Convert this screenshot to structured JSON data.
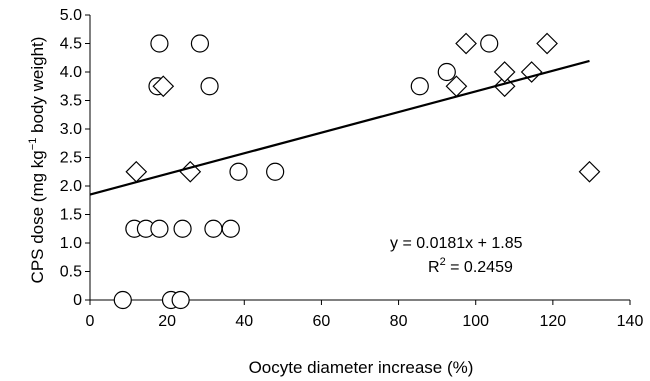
{
  "chart_data": {
    "type": "scatter",
    "xlabel": "Oocyte diameter increase (%)",
    "ylabel_main": "CPS dose (mg kg",
    "ylabel_sup": "−1",
    "ylabel_end": " body weight)",
    "xlim": [
      0,
      140
    ],
    "ylim": [
      0,
      5.0
    ],
    "x_ticks": [
      0,
      20,
      40,
      60,
      80,
      100,
      120,
      140
    ],
    "x_tick_labels": [
      "0",
      "20",
      "40",
      "60",
      "80",
      "100",
      "120",
      "140"
    ],
    "y_ticks": [
      0,
      0.5,
      1.0,
      1.5,
      2.0,
      2.5,
      3.0,
      3.5,
      4.0,
      4.5,
      5.0
    ],
    "y_tick_labels": [
      "0",
      "0.5",
      "1.0",
      "1.5",
      "2.0",
      "2.5",
      "3.0",
      "3.5",
      "4.0",
      "4.5",
      "5.0"
    ],
    "grid": false,
    "series": [
      {
        "marker": "circle",
        "points": [
          [
            8.5,
            0
          ],
          [
            21,
            0
          ],
          [
            23.5,
            0
          ],
          [
            11.5,
            1.25
          ],
          [
            14.5,
            1.25
          ],
          [
            18,
            1.25
          ],
          [
            24,
            1.25
          ],
          [
            32,
            1.25
          ],
          [
            36.5,
            1.25
          ],
          [
            38.5,
            2.25
          ],
          [
            48,
            2.25
          ],
          [
            17.5,
            3.75
          ],
          [
            31,
            3.75
          ],
          [
            85.5,
            3.75
          ],
          [
            92.5,
            4.0
          ],
          [
            18,
            4.5
          ],
          [
            28.5,
            4.5
          ],
          [
            103.5,
            4.5
          ]
        ]
      },
      {
        "marker": "diamond",
        "points": [
          [
            12,
            2.25
          ],
          [
            26,
            2.25
          ],
          [
            129.5,
            2.25
          ],
          [
            19,
            3.75
          ],
          [
            95,
            3.75
          ],
          [
            107.5,
            3.75
          ],
          [
            107.5,
            4.0
          ],
          [
            114.5,
            4.0
          ],
          [
            97.5,
            4.5
          ],
          [
            118.5,
            4.5
          ]
        ]
      }
    ],
    "trendline": {
      "slope": 0.0181,
      "intercept": 1.85,
      "x_range": [
        0,
        129.5
      ]
    },
    "annotations": {
      "equation": "y = 0.0181x + 1.85",
      "r2_prefix": "R",
      "r2_sup": "2",
      "r2_suffix": " = 0.2459"
    }
  }
}
